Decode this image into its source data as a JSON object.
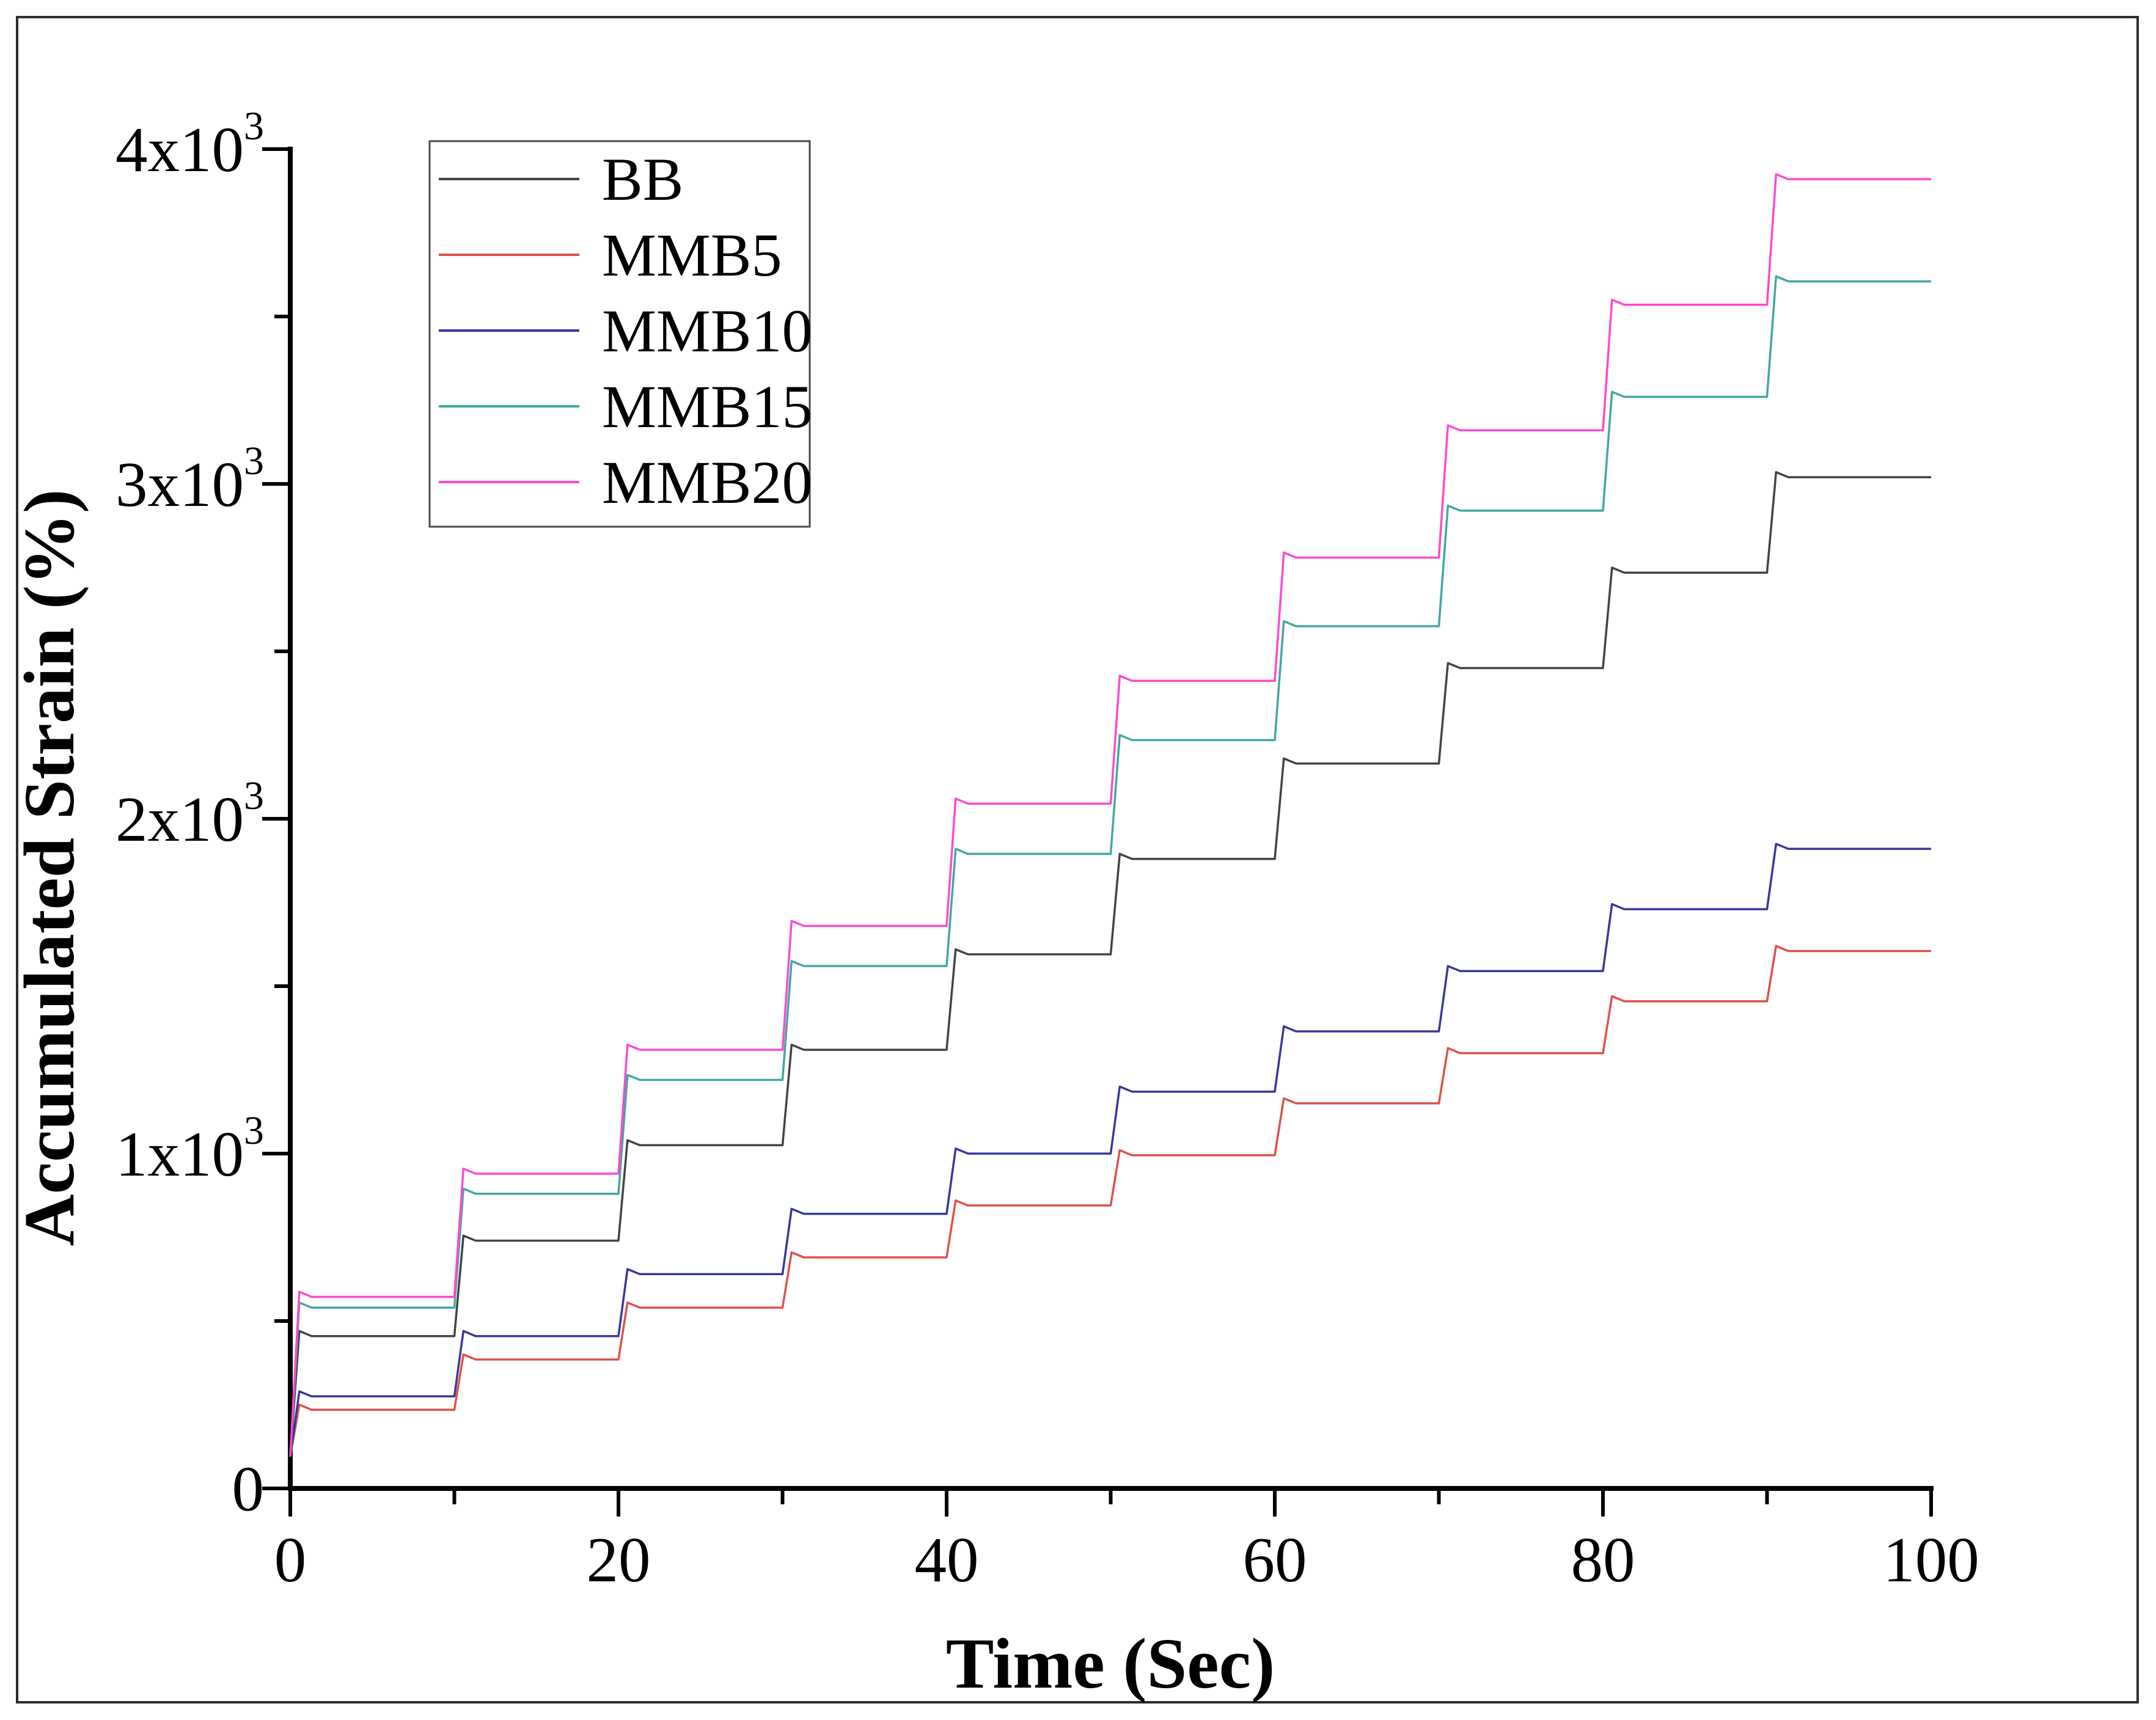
{
  "figure": {
    "background": "#ffffff",
    "border_color": "#2e2e2e"
  },
  "chart_data": {
    "type": "line",
    "title": "",
    "xlabel": "Time (Sec)",
    "ylabel": "Accumulated Strain (%)",
    "xlim": [
      0,
      100
    ],
    "ylim": [
      0,
      4000
    ],
    "grid": "off",
    "x_major_ticks": [
      0,
      20,
      40,
      60,
      80,
      100
    ],
    "x_minor_ticks": [
      10,
      30,
      50,
      70,
      90
    ],
    "y_major_ticks": [
      {
        "value": 0,
        "base": "0",
        "exp": ""
      },
      {
        "value": 1000,
        "base": "1x10",
        "exp": "3"
      },
      {
        "value": 2000,
        "base": "2x10",
        "exp": "3"
      },
      {
        "value": 3000,
        "base": "3x10",
        "exp": "3"
      },
      {
        "value": 4000,
        "base": "4x10",
        "exp": "3"
      }
    ],
    "y_minor_ticks": [
      500,
      1500,
      2500,
      3500
    ],
    "legend": {
      "position": "top-left",
      "entries": [
        "BB",
        "MMB5",
        "MMB10",
        "MMB15",
        "MMB20"
      ]
    },
    "cycle_period_sec": 10,
    "ramp_duration_sec": 1,
    "end_time_sec": 100,
    "start_value": 95,
    "overshoot": 15,
    "series": [
      {
        "name": "BB",
        "color": "#434343",
        "plateaus": [
          455,
          740,
          1025,
          1310,
          1595,
          1880,
          2165,
          2450,
          2735,
          3020
        ]
      },
      {
        "name": "MMB5",
        "color": "#dd524b",
        "plateaus": [
          235,
          385,
          540,
          690,
          845,
          995,
          1150,
          1300,
          1455,
          1605
        ]
      },
      {
        "name": "MMB10",
        "color": "#38379c",
        "plateaus": [
          275,
          455,
          640,
          820,
          1000,
          1185,
          1365,
          1545,
          1730,
          1910
        ]
      },
      {
        "name": "MMB15",
        "color": "#41a8a2",
        "plateaus": [
          540,
          880,
          1220,
          1560,
          1895,
          2235,
          2575,
          2920,
          3260,
          3605
        ]
      },
      {
        "name": "MMB20",
        "color": "#ff49ce",
        "plateaus": [
          572,
          940,
          1310,
          1680,
          2045,
          2412,
          2780,
          3160,
          3535,
          3910
        ]
      }
    ]
  }
}
